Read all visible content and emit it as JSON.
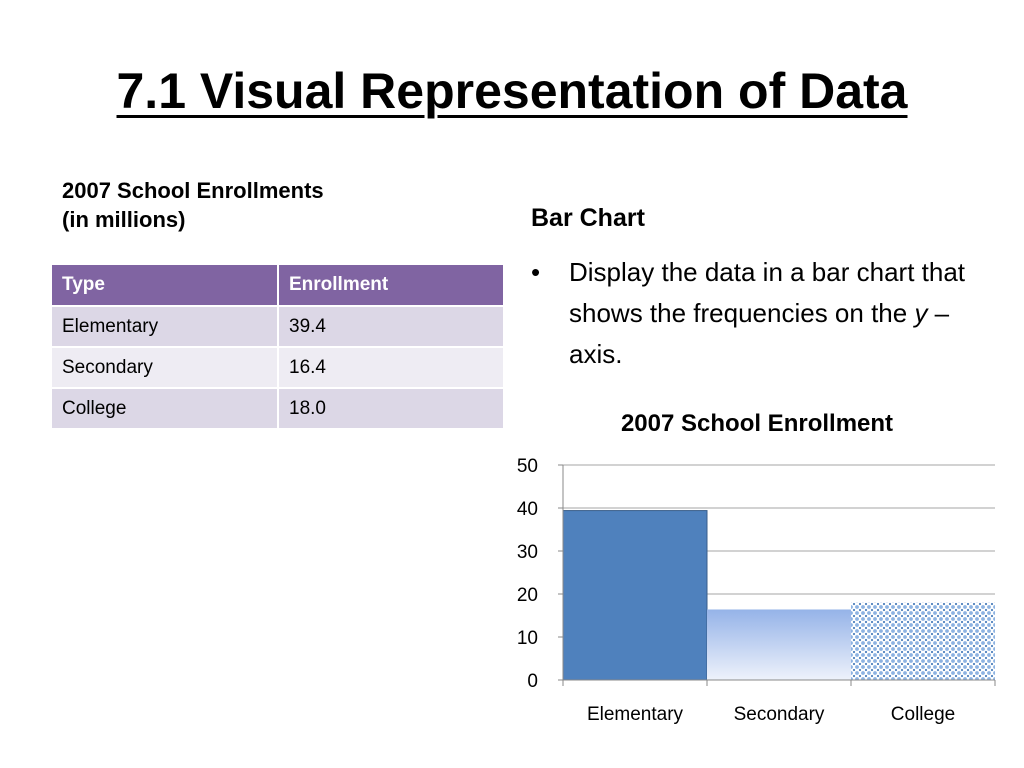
{
  "slide": {
    "title": "7.1 Visual Representation of Data"
  },
  "table": {
    "caption_line1": "2007 School Enrollments",
    "caption_line2": "(in millions)",
    "headers": [
      "Type",
      "Enrollment"
    ],
    "rows": [
      [
        "Elementary",
        "39.4"
      ],
      [
        "Secondary",
        "16.4"
      ],
      [
        "College",
        "18.0"
      ]
    ]
  },
  "bullets": {
    "heading": "Bar Chart",
    "bullet_symbol": "•",
    "text_before": "Display the data in a bar chart that shows the frequencies on the ",
    "text_italic": "y",
    "text_after": " – axis."
  },
  "chart_data": {
    "type": "bar",
    "title": "2007 School Enrollment",
    "xlabel": "",
    "ylabel": "",
    "categories": [
      "Elementary",
      "Secondary",
      "College"
    ],
    "values": [
      39.4,
      16.4,
      18.0
    ],
    "ylim": [
      0,
      50
    ],
    "yticks": [
      0,
      10,
      20,
      30,
      40,
      50
    ],
    "grid": true,
    "legend": "none",
    "bar_colors": [
      "#4f81bd",
      "#a9c1ec",
      "#8db3e2"
    ]
  }
}
